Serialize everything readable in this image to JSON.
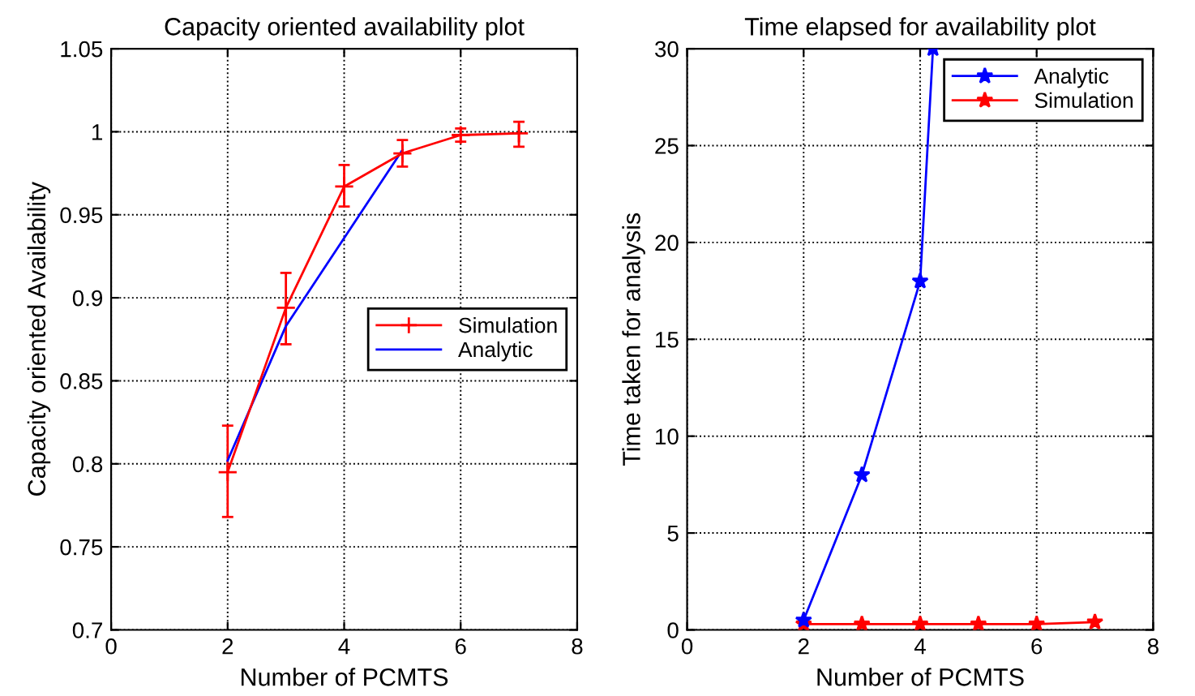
{
  "chart_data": [
    {
      "type": "line",
      "title": "Capacity oriented availability plot",
      "xlabel": "Number of PCMTS",
      "ylabel": "Capacity oriented Availability",
      "xlim": [
        0,
        8
      ],
      "xticks": [
        0,
        2,
        4,
        6,
        8
      ],
      "ylim": [
        0.7,
        1.05
      ],
      "yticks": [
        0.7,
        0.75,
        0.8,
        0.85,
        0.9,
        0.95,
        1,
        1.05
      ],
      "grid": true,
      "legend": "right",
      "series": [
        {
          "name": "Simulation",
          "color": "#ff0000",
          "marker": "cross",
          "x": [
            2,
            3,
            4,
            5,
            6,
            7
          ],
          "values": [
            0.795,
            0.894,
            0.967,
            0.987,
            0.998,
            0.999
          ],
          "errors": [
            [
              0.768,
              0.823
            ],
            [
              0.872,
              0.915
            ],
            [
              0.955,
              0.98
            ],
            [
              0.979,
              0.995
            ],
            [
              0.994,
              1.002
            ],
            [
              0.991,
              1.006
            ]
          ]
        },
        {
          "name": "Analytic",
          "color": "#0000ff",
          "marker": "none",
          "x": [
            2,
            3,
            5
          ],
          "values": [
            0.802,
            0.883,
            0.989
          ]
        }
      ]
    },
    {
      "type": "line",
      "title": "Time elapsed for availability plot",
      "xlabel": "Number of PCMTS",
      "ylabel": "Time taken for analysis",
      "xlim": [
        0,
        8
      ],
      "xticks": [
        0,
        2,
        4,
        6,
        8
      ],
      "ylim": [
        0,
        30
      ],
      "yticks": [
        0,
        5,
        10,
        15,
        20,
        25,
        30
      ],
      "grid": true,
      "legend": "top right",
      "series": [
        {
          "name": "Analytic",
          "color": "#0000ff",
          "marker": "star",
          "x": [
            2,
            3,
            4,
            4.22
          ],
          "values": [
            0.5,
            8,
            18,
            30
          ]
        },
        {
          "name": "Simulation",
          "color": "#ff0000",
          "marker": "star",
          "x": [
            2,
            3,
            4,
            5,
            6,
            7
          ],
          "values": [
            0.3,
            0.3,
            0.3,
            0.3,
            0.3,
            0.4
          ]
        }
      ]
    }
  ]
}
